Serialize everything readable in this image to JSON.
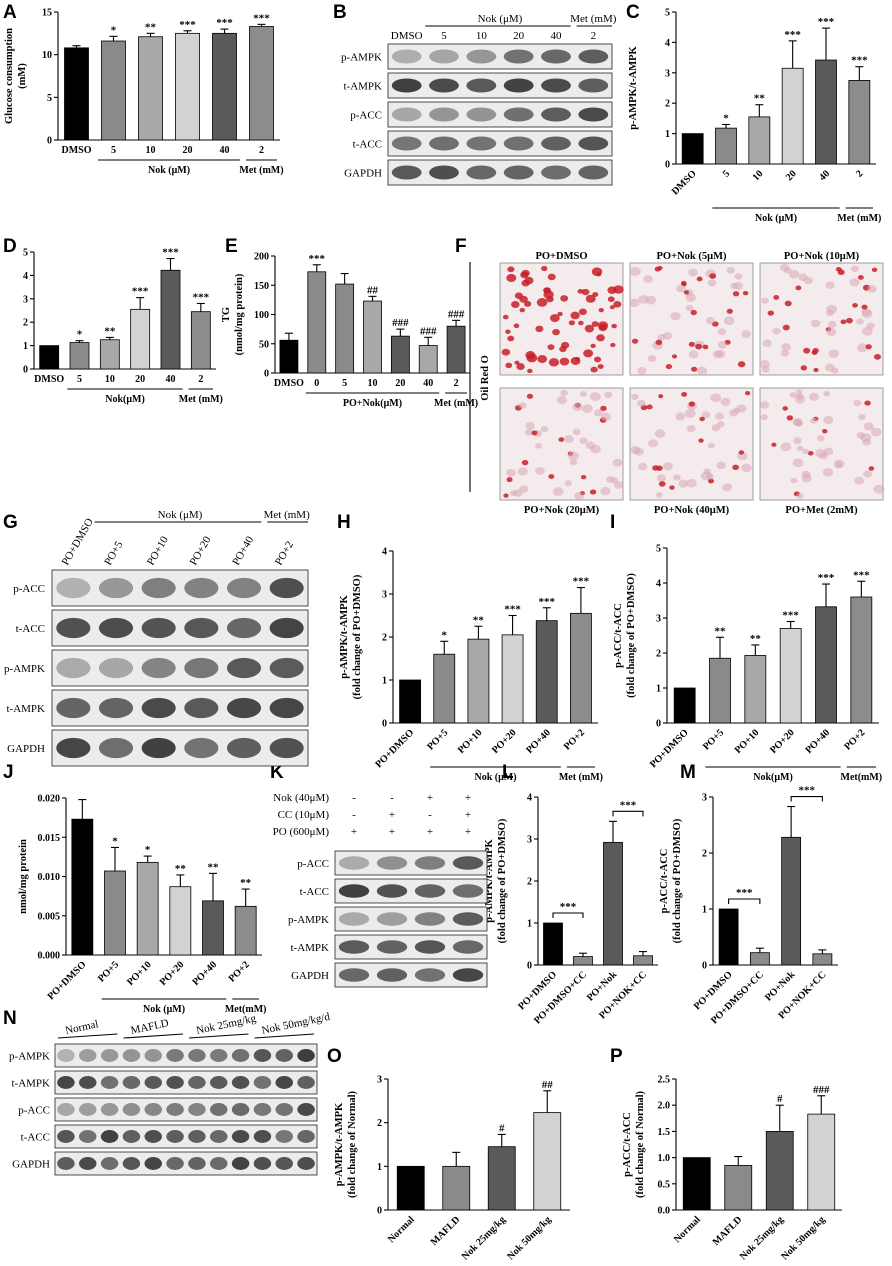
{
  "panels": {
    "A": "A",
    "B": "B",
    "C": "C",
    "D": "D",
    "E": "E",
    "F": "F",
    "G": "G",
    "H": "H",
    "I": "I",
    "J": "J",
    "K": "K",
    "L": "L",
    "M": "M",
    "N": "N",
    "O": "O",
    "P": "P"
  },
  "colors": {
    "c0": "#000000",
    "c1": "#8a8a8a",
    "c2": "#a8a8a8",
    "c3": "#d2d2d2",
    "c4": "#5a5a5a",
    "c5": "#8c8c8c"
  },
  "chart_data": [
    {
      "id": "A",
      "type": "bar",
      "ylabel": "Glucose consumption\n(mM)",
      "ylim": [
        0,
        15
      ],
      "yticks": [
        0,
        5,
        10,
        15
      ],
      "categories": [
        "DMSO",
        "5",
        "10",
        "20",
        "40",
        "2"
      ],
      "values": [
        10.8,
        11.6,
        12.1,
        12.5,
        12.5,
        13.3
      ],
      "errors": [
        0.25,
        0.55,
        0.4,
        0.3,
        0.5,
        0.25
      ],
      "colors": [
        "c0",
        "c1",
        "c2",
        "c3",
        "c4",
        "c5"
      ],
      "sig": [
        "",
        "*",
        "**",
        "***",
        "***",
        "***"
      ],
      "groups": [
        {
          "label": "Nok (μM)",
          "from": 1,
          "to": 4
        },
        {
          "label": "Met (mM)",
          "from": 5,
          "to": 5
        }
      ]
    },
    {
      "id": "C",
      "type": "bar",
      "ylabel": "p-AMPK/t-AMPK",
      "ylim": [
        0,
        5
      ],
      "yticks": [
        0,
        1,
        2,
        3,
        4,
        5
      ],
      "categories": [
        "DMSO",
        "5",
        "10",
        "20",
        "40",
        "2"
      ],
      "values": [
        1.0,
        1.18,
        1.55,
        3.15,
        3.42,
        2.75
      ],
      "errors": [
        0,
        0.12,
        0.4,
        0.9,
        1.05,
        0.45
      ],
      "colors": [
        "c0",
        "c1",
        "c2",
        "c3",
        "c4",
        "c5"
      ],
      "sig": [
        "",
        "*",
        "**",
        "***",
        "***",
        "***"
      ],
      "groups": [
        {
          "label": "Nok (μM)",
          "from": 1,
          "to": 4
        },
        {
          "label": "Met (mM)",
          "from": 5,
          "to": 5
        }
      ]
    },
    {
      "id": "D",
      "type": "bar",
      "ylabel": "p-ACC/t-ACC",
      "ylim": [
        0,
        5
      ],
      "yticks": [
        0,
        1,
        2,
        3,
        4,
        5
      ],
      "categories": [
        "DMSO",
        "5",
        "10",
        "20",
        "40",
        "2"
      ],
      "values": [
        1.0,
        1.13,
        1.25,
        2.55,
        4.22,
        2.45
      ],
      "errors": [
        0,
        0.08,
        0.1,
        0.5,
        0.5,
        0.35
      ],
      "colors": [
        "c0",
        "c1",
        "c2",
        "c3",
        "c4",
        "c5"
      ],
      "sig": [
        "",
        "*",
        "**",
        "***",
        "***",
        "***"
      ],
      "groups": [
        {
          "label": "Nok(μM)",
          "from": 1,
          "to": 4
        },
        {
          "label": "Met (mM)",
          "from": 5,
          "to": 5
        }
      ]
    },
    {
      "id": "E",
      "type": "bar",
      "ylabel": "TG\n(nmol/mg protein)",
      "ylim": [
        0,
        200
      ],
      "yticks": [
        0,
        50,
        100,
        150,
        200
      ],
      "categories": [
        "DMSO",
        "0",
        "5",
        "10",
        "20",
        "40",
        "2"
      ],
      "values": [
        56,
        173,
        152,
        123,
        63,
        47,
        80
      ],
      "errors": [
        12,
        12,
        18,
        8,
        12,
        14,
        10
      ],
      "colors": [
        "c0",
        "c1",
        "c1",
        "c2",
        "c4",
        "c2",
        "c4"
      ],
      "sig": [
        "",
        "***",
        "",
        "##",
        "###",
        "###",
        "###"
      ],
      "groups": [
        {
          "label": "PO+Nok(μM)",
          "from": 1,
          "to": 5
        },
        {
          "label": "Met (mM)",
          "from": 6,
          "to": 6
        }
      ]
    },
    {
      "id": "H",
      "type": "bar",
      "ylabel": "p-AMPK/t-AMPK\n(fold change of PO+DMSO)",
      "ylim": [
        0,
        4
      ],
      "yticks": [
        0,
        1,
        2,
        3,
        4
      ],
      "categories": [
        "PO+DMSO",
        "PO+5",
        "PO+10",
        "PO+20",
        "PO+40",
        "PO+2"
      ],
      "values": [
        1.0,
        1.6,
        1.95,
        2.05,
        2.38,
        2.55
      ],
      "errors": [
        0,
        0.3,
        0.3,
        0.45,
        0.3,
        0.6
      ],
      "colors": [
        "c0",
        "c1",
        "c2",
        "c3",
        "c4",
        "c5"
      ],
      "sig": [
        "",
        "*",
        "**",
        "***",
        "***",
        "***"
      ],
      "groups": [
        {
          "label": "Nok (μM)",
          "from": 1,
          "to": 4
        },
        {
          "label": "Met (mM)",
          "from": 5,
          "to": 5
        }
      ]
    },
    {
      "id": "I",
      "type": "bar",
      "ylabel": "p-ACC/t-ACC\n(fold change of PO+DMSO)",
      "ylim": [
        0,
        5
      ],
      "yticks": [
        0,
        1,
        2,
        3,
        4,
        5
      ],
      "categories": [
        "PO+DMSO",
        "PO+5",
        "PO+10",
        "PO+20",
        "PO+40",
        "PO+2"
      ],
      "values": [
        1.0,
        1.85,
        1.93,
        2.7,
        3.32,
        3.6
      ],
      "errors": [
        0,
        0.6,
        0.3,
        0.2,
        0.65,
        0.45
      ],
      "colors": [
        "c0",
        "c1",
        "c2",
        "c3",
        "c4",
        "c5"
      ],
      "sig": [
        "",
        "**",
        "**",
        "***",
        "***",
        "***"
      ],
      "groups": [
        {
          "label": "Nok(μM)",
          "from": 1,
          "to": 4
        },
        {
          "label": "Met(mM)",
          "from": 5,
          "to": 5
        }
      ]
    },
    {
      "id": "J",
      "type": "bar",
      "ylabel": "nmol/mg protein",
      "ylim": [
        0,
        0.02
      ],
      "yticks": [
        "0.000",
        "0.005",
        "0.010",
        "0.015",
        "0.020"
      ],
      "categories": [
        "PO+DMSO",
        "PO+5",
        "PO+10",
        "PO+20",
        "PO+40",
        "PO+2"
      ],
      "values": [
        0.0173,
        0.0107,
        0.0118,
        0.0087,
        0.0069,
        0.0062
      ],
      "errors": [
        0.0025,
        0.003,
        0.0008,
        0.0015,
        0.0035,
        0.0022
      ],
      "colors": [
        "c0",
        "c1",
        "c2",
        "c3",
        "c4",
        "c5"
      ],
      "sig": [
        "",
        "*",
        "*",
        "**",
        "**",
        "**"
      ],
      "groups": [
        {
          "label": "Nok (μM)",
          "from": 1,
          "to": 4
        },
        {
          "label": "Met(mM)",
          "from": 5,
          "to": 5
        }
      ]
    },
    {
      "id": "L",
      "type": "bar",
      "ylabel": "p-AMPK/t-AMPK\n(fold change of PO+DMSO)",
      "ylim": [
        0,
        4
      ],
      "yticks": [
        0,
        1,
        2,
        3,
        4
      ],
      "categories": [
        "PO+DMSO",
        "PO+DMSO+CC",
        "PO+Nok",
        "PO+NOK+CC"
      ],
      "values": [
        1.0,
        0.2,
        2.92,
        0.22
      ],
      "errors": [
        0,
        0.08,
        0.5,
        0.1
      ],
      "colors": [
        "c0",
        "c1",
        "c4",
        "c1"
      ],
      "sig": [
        "",
        "",
        "",
        ""
      ],
      "brackets": [
        {
          "from": 0,
          "to": 1,
          "label": "***"
        },
        {
          "from": 2,
          "to": 3,
          "label": "***"
        }
      ],
      "groups": []
    },
    {
      "id": "M",
      "type": "bar",
      "ylabel": "p-ACC/t-ACC\n(fold change of PO+DMSO)",
      "ylim": [
        0,
        3
      ],
      "yticks": [
        0,
        1,
        2,
        3
      ],
      "categories": [
        "PO+DMSO",
        "PO+DMSO+CC",
        "PO+Nok",
        "PO+NOK+CC"
      ],
      "values": [
        1.0,
        0.22,
        2.28,
        0.2
      ],
      "errors": [
        0,
        0.08,
        0.55,
        0.07
      ],
      "colors": [
        "c0",
        "c1",
        "c4",
        "c1"
      ],
      "sig": [
        "",
        "",
        "",
        ""
      ],
      "brackets": [
        {
          "from": 0,
          "to": 1,
          "label": "***"
        },
        {
          "from": 2,
          "to": 3,
          "label": "***"
        }
      ],
      "groups": []
    },
    {
      "id": "O",
      "type": "bar",
      "ylabel": "p-AMPK/t-AMPK\n(fold change of Normal)",
      "ylim": [
        0,
        3
      ],
      "yticks": [
        0,
        1,
        2,
        3
      ],
      "categories": [
        "Normal",
        "MAFLD",
        "Nok 25mg/kg",
        "Nok 50mg/kg"
      ],
      "values": [
        1.0,
        1.0,
        1.45,
        2.23
      ],
      "errors": [
        0,
        0.32,
        0.28,
        0.5
      ],
      "colors": [
        "c0",
        "c1",
        "c4",
        "c3"
      ],
      "sig": [
        "",
        "",
        "#",
        "##"
      ],
      "groups": []
    },
    {
      "id": "P",
      "type": "bar",
      "ylabel": "p-ACC/t-ACC\n(fold change of Normal)",
      "ylim": [
        0,
        2.5
      ],
      "yticks": [
        "0.0",
        "0.5",
        "1.0",
        "1.5",
        "2.0",
        "2.5"
      ],
      "categories": [
        "Normal",
        "MAFLD",
        "Nok 25mg/kg",
        "Nok 50mg/kg"
      ],
      "values": [
        1.0,
        0.85,
        1.5,
        1.83
      ],
      "errors": [
        0,
        0.17,
        0.5,
        0.35
      ],
      "colors": [
        "c0",
        "c1",
        "c4",
        "c3"
      ],
      "sig": [
        "",
        "",
        "#",
        "###"
      ],
      "groups": []
    }
  ],
  "blots": {
    "B": {
      "header_top": "Nok (μM)",
      "header_met": "Met (mM)",
      "lanes": [
        "DMSO",
        "5",
        "10",
        "20",
        "40",
        "2"
      ],
      "rows": [
        "p-AMPK",
        "t-AMPK",
        "p-ACC",
        "t-ACC",
        "GAPDH"
      ]
    },
    "G": {
      "header_top": "Nok (μM)",
      "header_met": "Met (mM)",
      "lanes": [
        "PO+DMSO",
        "PO+5",
        "PO+10",
        "PO+20",
        "PO+40",
        "PO+2"
      ],
      "rows": [
        "p-ACC",
        "t-ACC",
        "p-AMPK",
        "t-AMPK",
        "GAPDH"
      ]
    },
    "K": {
      "conditions": [
        {
          "label": "Nok (40μM)",
          "vals": [
            "-",
            "-",
            "+",
            "+"
          ]
        },
        {
          "label": "CC (10μM)",
          "vals": [
            "-",
            "+",
            "-",
            "+"
          ]
        },
        {
          "label": "PO (600μM)",
          "vals": [
            "+",
            "+",
            "+",
            "+"
          ]
        }
      ],
      "rows": [
        "p-ACC",
        "t-ACC",
        "p-AMPK",
        "t-AMPK",
        "GAPDH"
      ]
    },
    "N": {
      "groups": [
        "Normal",
        "MAFLD",
        "Nok 25mg/kg",
        "Nok 50mg/kg/d"
      ],
      "rows": [
        "p-AMPK",
        "t-AMPK",
        "p-ACC",
        "t-ACC",
        "GAPDH"
      ]
    }
  },
  "oilred": {
    "side_label": "Oil Red O",
    "top": [
      "PO+DMSO",
      "PO+Nok (5μM)",
      "PO+Nok (10μM)"
    ],
    "bottom": [
      "PO+Nok (20μM)",
      "PO+Nok (40μM)",
      "PO+Met (2mM)"
    ],
    "density": [
      1.0,
      0.45,
      0.4,
      0.35,
      0.3,
      0.25
    ]
  }
}
